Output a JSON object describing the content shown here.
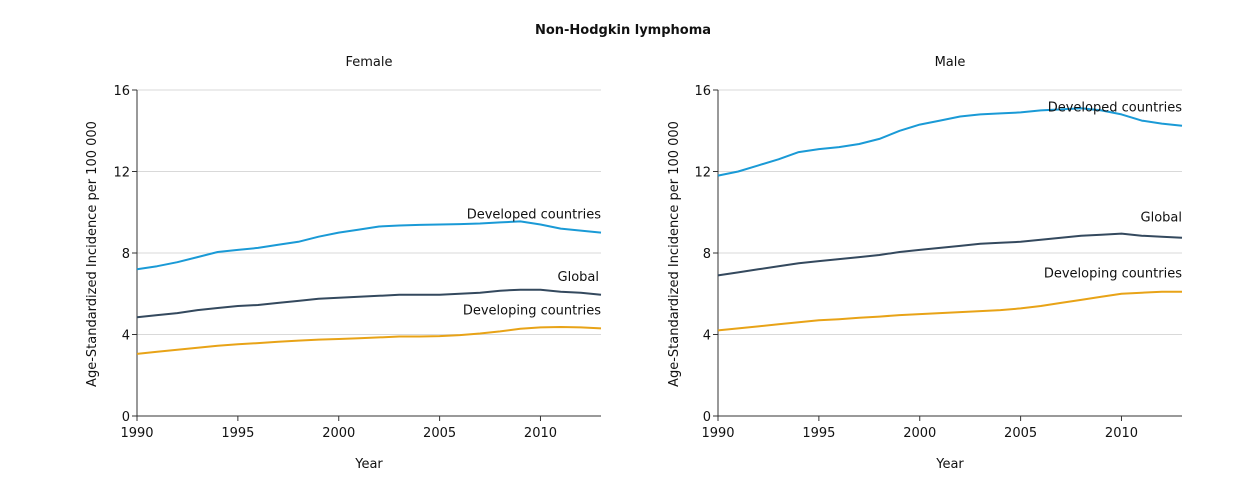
{
  "figure_title": "Non-Hodgkin lymphoma",
  "colors": {
    "Developed countries": "#1a9ad6",
    "Global": "#34495e",
    "Developing countries": "#e8a317"
  },
  "chart_data": [
    {
      "type": "line",
      "title": "Female",
      "xlabel": "Year",
      "ylabel": "Age-Standardized Incidence per 100 000",
      "xlim": [
        1990,
        2013
      ],
      "ylim": [
        0,
        16
      ],
      "xticks": [
        1990,
        1995,
        2000,
        2005,
        2010
      ],
      "yticks": [
        0,
        4,
        8,
        12,
        16
      ],
      "grid": true,
      "x": [
        1990,
        1991,
        1992,
        1993,
        1994,
        1995,
        1996,
        1997,
        1998,
        1999,
        2000,
        2001,
        2002,
        2003,
        2004,
        2005,
        2006,
        2007,
        2008,
        2009,
        2010,
        2011,
        2012,
        2013
      ],
      "series": [
        {
          "name": "Developed countries",
          "values": [
            7.2,
            7.35,
            7.55,
            7.8,
            8.05,
            8.15,
            8.25,
            8.4,
            8.55,
            8.8,
            9.0,
            9.15,
            9.3,
            9.35,
            9.38,
            9.4,
            9.42,
            9.45,
            9.5,
            9.55,
            9.4,
            9.2,
            9.1,
            9.0
          ]
        },
        {
          "name": "Global",
          "values": [
            4.85,
            4.95,
            5.05,
            5.2,
            5.3,
            5.4,
            5.45,
            5.55,
            5.65,
            5.75,
            5.8,
            5.85,
            5.9,
            5.95,
            5.95,
            5.95,
            6.0,
            6.05,
            6.15,
            6.2,
            6.2,
            6.1,
            6.05,
            5.95
          ]
        },
        {
          "name": "Developing countries",
          "values": [
            3.05,
            3.15,
            3.25,
            3.35,
            3.45,
            3.52,
            3.58,
            3.64,
            3.7,
            3.75,
            3.78,
            3.82,
            3.86,
            3.9,
            3.9,
            3.92,
            3.97,
            4.05,
            4.15,
            4.28,
            4.35,
            4.37,
            4.35,
            4.3
          ]
        }
      ]
    },
    {
      "type": "line",
      "title": "Male",
      "xlabel": "Year",
      "ylabel": "Age-Standardized Incidence per 100 000",
      "xlim": [
        1990,
        2013
      ],
      "ylim": [
        0,
        16
      ],
      "xticks": [
        1990,
        1995,
        2000,
        2005,
        2010
      ],
      "yticks": [
        0,
        4,
        8,
        12,
        16
      ],
      "grid": true,
      "x": [
        1990,
        1991,
        1992,
        1993,
        1994,
        1995,
        1996,
        1997,
        1998,
        1999,
        2000,
        2001,
        2002,
        2003,
        2004,
        2005,
        2006,
        2007,
        2008,
        2009,
        2010,
        2011,
        2012,
        2013
      ],
      "series": [
        {
          "name": "Developed countries",
          "values": [
            11.8,
            12.0,
            12.3,
            12.6,
            12.95,
            13.1,
            13.2,
            13.35,
            13.6,
            14.0,
            14.3,
            14.5,
            14.7,
            14.8,
            14.85,
            14.9,
            15.0,
            15.05,
            15.1,
            15.0,
            14.8,
            14.5,
            14.35,
            14.25
          ]
        },
        {
          "name": "Global",
          "values": [
            6.9,
            7.05,
            7.2,
            7.35,
            7.5,
            7.6,
            7.7,
            7.8,
            7.9,
            8.05,
            8.15,
            8.25,
            8.35,
            8.45,
            8.5,
            8.55,
            8.65,
            8.75,
            8.85,
            8.9,
            8.95,
            8.85,
            8.8,
            8.75
          ]
        },
        {
          "name": "Developing countries",
          "values": [
            4.2,
            4.3,
            4.4,
            4.5,
            4.6,
            4.7,
            4.75,
            4.82,
            4.88,
            4.95,
            5.0,
            5.05,
            5.1,
            5.15,
            5.2,
            5.28,
            5.4,
            5.55,
            5.7,
            5.85,
            6.0,
            6.05,
            6.1,
            6.1
          ]
        }
      ]
    }
  ]
}
